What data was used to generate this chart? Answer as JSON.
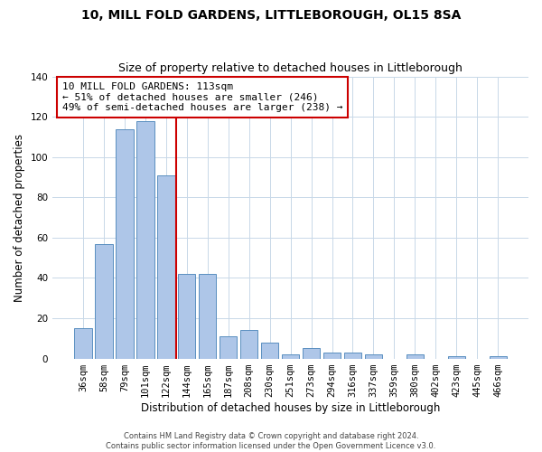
{
  "title": "10, MILL FOLD GARDENS, LITTLEBOROUGH, OL15 8SA",
  "subtitle": "Size of property relative to detached houses in Littleborough",
  "xlabel": "Distribution of detached houses by size in Littleborough",
  "ylabel": "Number of detached properties",
  "categories": [
    "36sqm",
    "58sqm",
    "79sqm",
    "101sqm",
    "122sqm",
    "144sqm",
    "165sqm",
    "187sqm",
    "208sqm",
    "230sqm",
    "251sqm",
    "273sqm",
    "294sqm",
    "316sqm",
    "337sqm",
    "359sqm",
    "380sqm",
    "402sqm",
    "423sqm",
    "445sqm",
    "466sqm"
  ],
  "values": [
    15,
    57,
    114,
    118,
    91,
    42,
    42,
    11,
    14,
    8,
    2,
    5,
    3,
    3,
    2,
    0,
    2,
    0,
    1,
    0,
    1
  ],
  "bar_color": "#aec6e8",
  "bar_edge_color": "#5a8fc0",
  "vline_x_index": 4,
  "vline_color": "#cc0000",
  "annotation_text": "10 MILL FOLD GARDENS: 113sqm\n← 51% of detached houses are smaller (246)\n49% of semi-detached houses are larger (238) →",
  "annotation_box_color": "#ffffff",
  "annotation_box_edge_color": "#cc0000",
  "ylim": [
    0,
    140
  ],
  "yticks": [
    0,
    20,
    40,
    60,
    80,
    100,
    120,
    140
  ],
  "footer": "Contains HM Land Registry data © Crown copyright and database right 2024.\nContains public sector information licensed under the Open Government Licence v3.0.",
  "bg_color": "#ffffff",
  "grid_color": "#c8d8e8",
  "title_fontsize": 10,
  "subtitle_fontsize": 9,
  "axis_label_fontsize": 8.5,
  "tick_fontsize": 7.5,
  "annotation_fontsize": 8,
  "footer_fontsize": 6
}
